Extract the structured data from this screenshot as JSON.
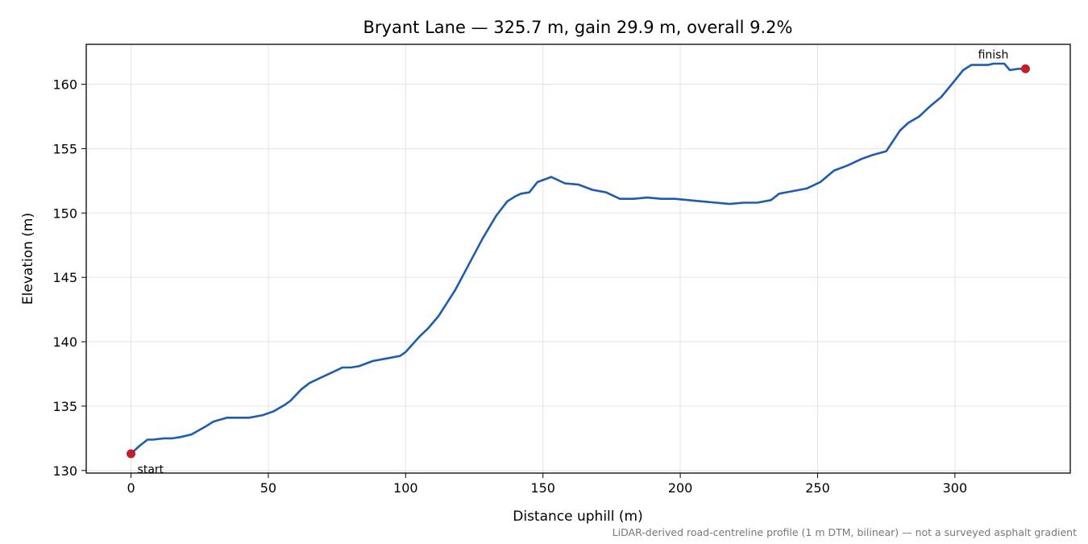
{
  "chart_data": {
    "type": "line",
    "title": "Bryant Lane — 325.7 m, gain 29.9 m, overall 9.2%",
    "xlabel": "Distance uphill (m)",
    "ylabel": "Elevation (m)",
    "xlim": [
      -16.3,
      342.0
    ],
    "ylim": [
      129.8,
      163.1
    ],
    "xticks": [
      0,
      50,
      100,
      150,
      200,
      250,
      300
    ],
    "yticks": [
      130,
      135,
      140,
      145,
      150,
      155,
      160
    ],
    "grid": true,
    "line_color": "#1f5bb0",
    "marker_color": "#c41e2a",
    "series": [
      {
        "x": [
          0,
          3,
          6,
          8,
          12,
          15,
          18,
          22,
          27,
          30,
          35,
          38,
          40,
          43,
          48,
          52,
          56,
          58,
          62,
          65,
          70,
          73,
          77,
          80,
          83,
          88,
          93,
          98,
          100,
          105,
          108,
          112,
          118,
          123,
          128,
          133,
          137,
          140,
          142,
          145,
          148,
          153,
          158,
          163,
          168,
          173,
          178,
          183,
          188,
          193,
          198,
          203,
          208,
          213,
          218,
          223,
          228,
          233,
          236,
          241,
          246,
          251,
          256,
          261,
          266,
          270,
          275,
          280,
          283,
          287,
          291,
          295,
          300,
          303,
          306,
          309,
          312,
          314,
          316,
          318,
          320,
          323,
          325.7
        ],
        "y": [
          131.3,
          131.9,
          132.4,
          132.4,
          132.5,
          132.5,
          132.6,
          132.8,
          133.4,
          133.8,
          134.1,
          134.1,
          134.1,
          134.1,
          134.3,
          134.6,
          135.1,
          135.4,
          136.3,
          136.8,
          137.3,
          137.6,
          138.0,
          138.0,
          138.1,
          138.5,
          138.7,
          138.9,
          139.2,
          140.4,
          141.0,
          142.0,
          144.0,
          146.0,
          148.0,
          149.8,
          150.9,
          151.3,
          151.5,
          151.6,
          152.4,
          152.8,
          152.3,
          152.2,
          151.8,
          151.6,
          151.1,
          151.1,
          151.2,
          151.1,
          151.1,
          151.0,
          150.9,
          150.8,
          150.7,
          150.8,
          150.8,
          151.0,
          151.5,
          151.7,
          151.9,
          152.4,
          153.3,
          153.7,
          154.2,
          154.5,
          154.8,
          156.4,
          157.0,
          157.5,
          158.3,
          159.0,
          160.3,
          161.1,
          161.5,
          161.5,
          161.5,
          161.6,
          161.6,
          161.6,
          161.1,
          161.2,
          161.2
        ]
      }
    ],
    "annotations": [
      {
        "label": "start",
        "x": 0,
        "y": 131.3
      },
      {
        "label": "finish",
        "x": 325.7,
        "y": 161.2
      }
    ],
    "footnote": "LiDAR-derived road-centreline profile (1 m DTM, bilinear) — not a surveyed asphalt gradient"
  }
}
